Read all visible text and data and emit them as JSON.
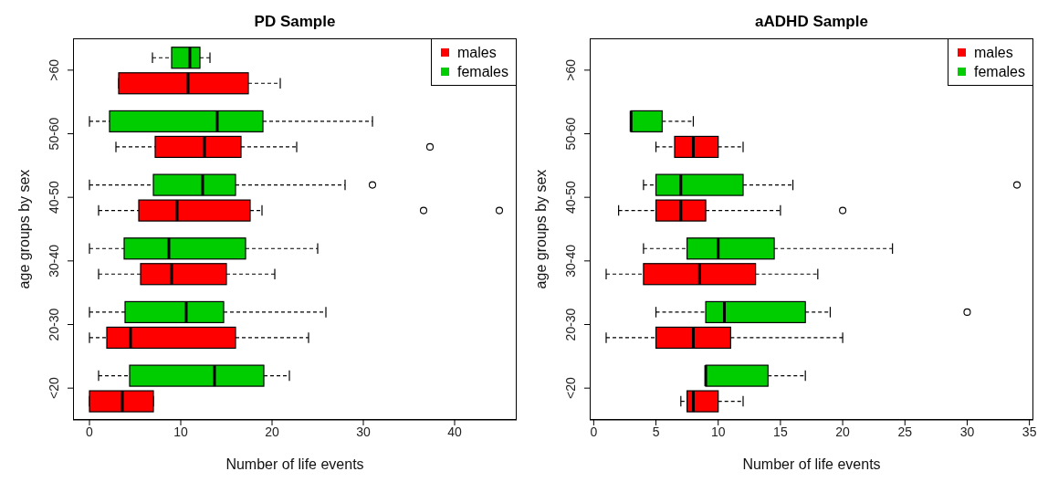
{
  "chart_data": [
    {
      "type": "box",
      "orientation": "horizontal",
      "title": "PD Sample",
      "xlabel": "Number of life events",
      "ylabel": "age groups by sex",
      "legend": "top right",
      "categories": [
        ">60",
        "50-60",
        "40-50",
        "30-40",
        "20-30",
        "<20"
      ],
      "xlim": [
        -1.8,
        46.8
      ],
      "xticks": [
        0,
        10,
        20,
        30,
        40
      ],
      "series": [
        {
          "name": "males",
          "color": "#ff0000",
          "boxes": [
            {
              "low": 3.2,
              "q1": 3.2,
              "median": 10.8,
              "q3": 17.4,
              "high": 20.9
            },
            {
              "low": 2.9,
              "q1": 7.2,
              "median": 12.6,
              "q3": 16.6,
              "high": 22.7,
              "outliers": [
                37.3
              ]
            },
            {
              "low": 1,
              "q1": 5.4,
              "median": 9.6,
              "q3": 17.6,
              "high": 18.9,
              "outliers": [
                36.6,
                44.9
              ]
            },
            {
              "low": 1,
              "q1": 5.6,
              "median": 9,
              "q3": 15,
              "high": 20.3
            },
            {
              "low": 0,
              "q1": 1.9,
              "median": 4.5,
              "q3": 16,
              "high": 24
            },
            {
              "low": 0,
              "q1": 0,
              "median": 3.6,
              "q3": 7,
              "high": 7
            }
          ]
        },
        {
          "name": "females",
          "color": "#00cd00",
          "boxes": [
            {
              "low": 6.9,
              "q1": 9,
              "median": 11,
              "q3": 12.1,
              "high": 13.2
            },
            {
              "low": 0,
              "q1": 2.2,
              "median": 14,
              "q3": 19,
              "high": 31
            },
            {
              "low": 0,
              "q1": 7,
              "median": 12.4,
              "q3": 16,
              "high": 28,
              "outliers": [
                31
              ]
            },
            {
              "low": 0,
              "q1": 3.8,
              "median": 8.7,
              "q3": 17.1,
              "high": 25
            },
            {
              "low": 0,
              "q1": 3.9,
              "median": 10.6,
              "q3": 14.7,
              "high": 25.9
            },
            {
              "low": 1,
              "q1": 4.4,
              "median": 13.7,
              "q3": 19.1,
              "high": 21.9
            }
          ]
        }
      ]
    },
    {
      "type": "box",
      "orientation": "horizontal",
      "title": "aADHD Sample",
      "xlabel": "Number of life events",
      "ylabel": "age groups by sex",
      "legend": "top right",
      "categories": [
        ">60",
        "50-60",
        "40-50",
        "30-40",
        "20-30",
        "<20"
      ],
      "xlim": [
        -0.32,
        35.32
      ],
      "xticks": [
        0,
        5,
        10,
        15,
        20,
        25,
        30,
        35
      ],
      "series": [
        {
          "name": "males",
          "color": "#ff0000",
          "boxes": [
            null,
            {
              "low": 5,
              "q1": 6.5,
              "median": 8,
              "q3": 10,
              "high": 12
            },
            {
              "low": 2,
              "q1": 5,
              "median": 7,
              "q3": 9,
              "high": 15,
              "outliers": [
                20
              ]
            },
            {
              "low": 1,
              "q1": 4,
              "median": 8.5,
              "q3": 13,
              "high": 18
            },
            {
              "low": 1,
              "q1": 5,
              "median": 8,
              "q3": 11,
              "high": 20
            },
            {
              "low": 7,
              "q1": 7.5,
              "median": 8,
              "q3": 10,
              "high": 12
            }
          ]
        },
        {
          "name": "females",
          "color": "#00cd00",
          "boxes": [
            null,
            {
              "low": 3,
              "q1": 3,
              "median": 3,
              "q3": 5.5,
              "high": 8
            },
            {
              "low": 4,
              "q1": 5,
              "median": 7,
              "q3": 12,
              "high": 16,
              "outliers": [
                34
              ]
            },
            {
              "low": 4,
              "q1": 7.5,
              "median": 10,
              "q3": 14.5,
              "high": 24
            },
            {
              "low": 5,
              "q1": 9,
              "median": 10.5,
              "q3": 17,
              "high": 19,
              "outliers": [
                30
              ]
            },
            {
              "low": 9,
              "q1": 9,
              "median": 9,
              "q3": 14,
              "high": 17
            }
          ]
        }
      ]
    }
  ]
}
